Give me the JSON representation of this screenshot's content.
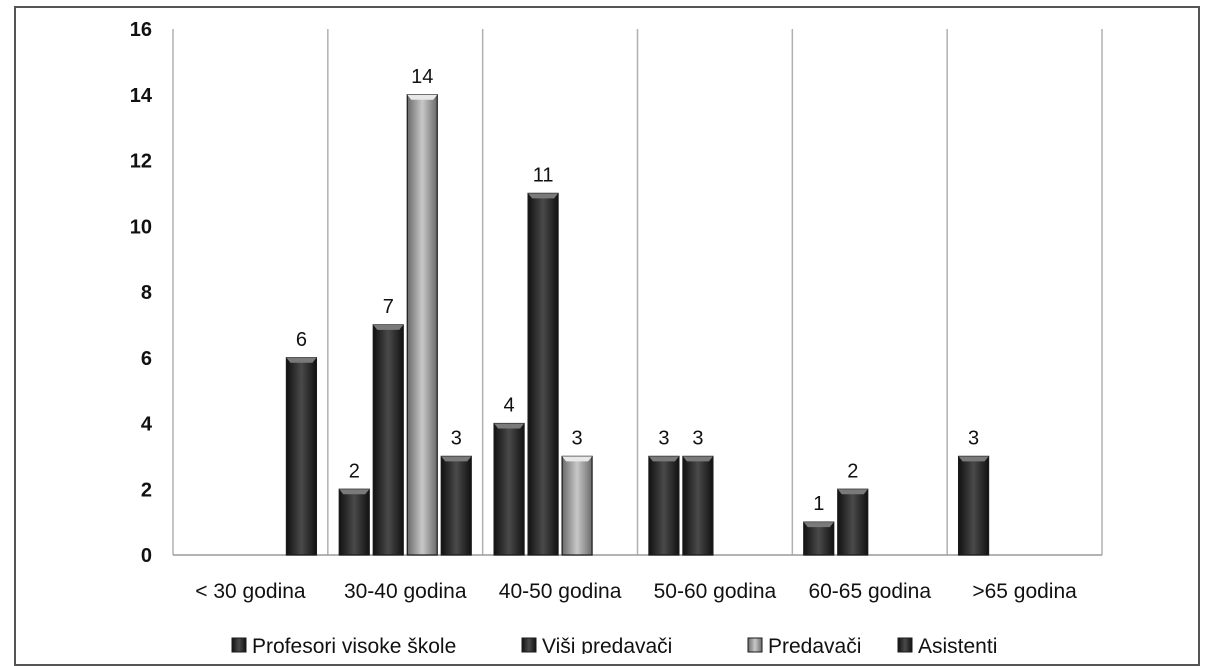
{
  "chart_data": {
    "type": "bar",
    "title": "",
    "xlabel": "",
    "ylabel": "",
    "ylim": [
      0,
      16
    ],
    "yticks": [
      0,
      2,
      4,
      6,
      8,
      10,
      12,
      14,
      16
    ],
    "grid": "vertical category separators",
    "legend_position": "bottom",
    "categories": [
      "< 30 godina",
      "30-40 godina",
      "40-50 godina",
      "50-60 godina",
      "60-65 godina",
      ">65 godina"
    ],
    "series": [
      {
        "name": "Profesori visoke škole",
        "color": "#3a3a3a",
        "values": [
          0,
          2,
          4,
          3,
          1,
          3
        ]
      },
      {
        "name": "Viši predavači",
        "color": "#2e2e2e",
        "values": [
          0,
          7,
          11,
          3,
          2,
          0
        ]
      },
      {
        "name": "Predavači",
        "color": "#9a9a9a",
        "values": [
          0,
          14,
          3,
          0,
          0,
          0
        ]
      },
      {
        "name": "Asistenti",
        "color": "#1e1e1e",
        "values": [
          6,
          3,
          0,
          0,
          0,
          0
        ]
      }
    ]
  }
}
